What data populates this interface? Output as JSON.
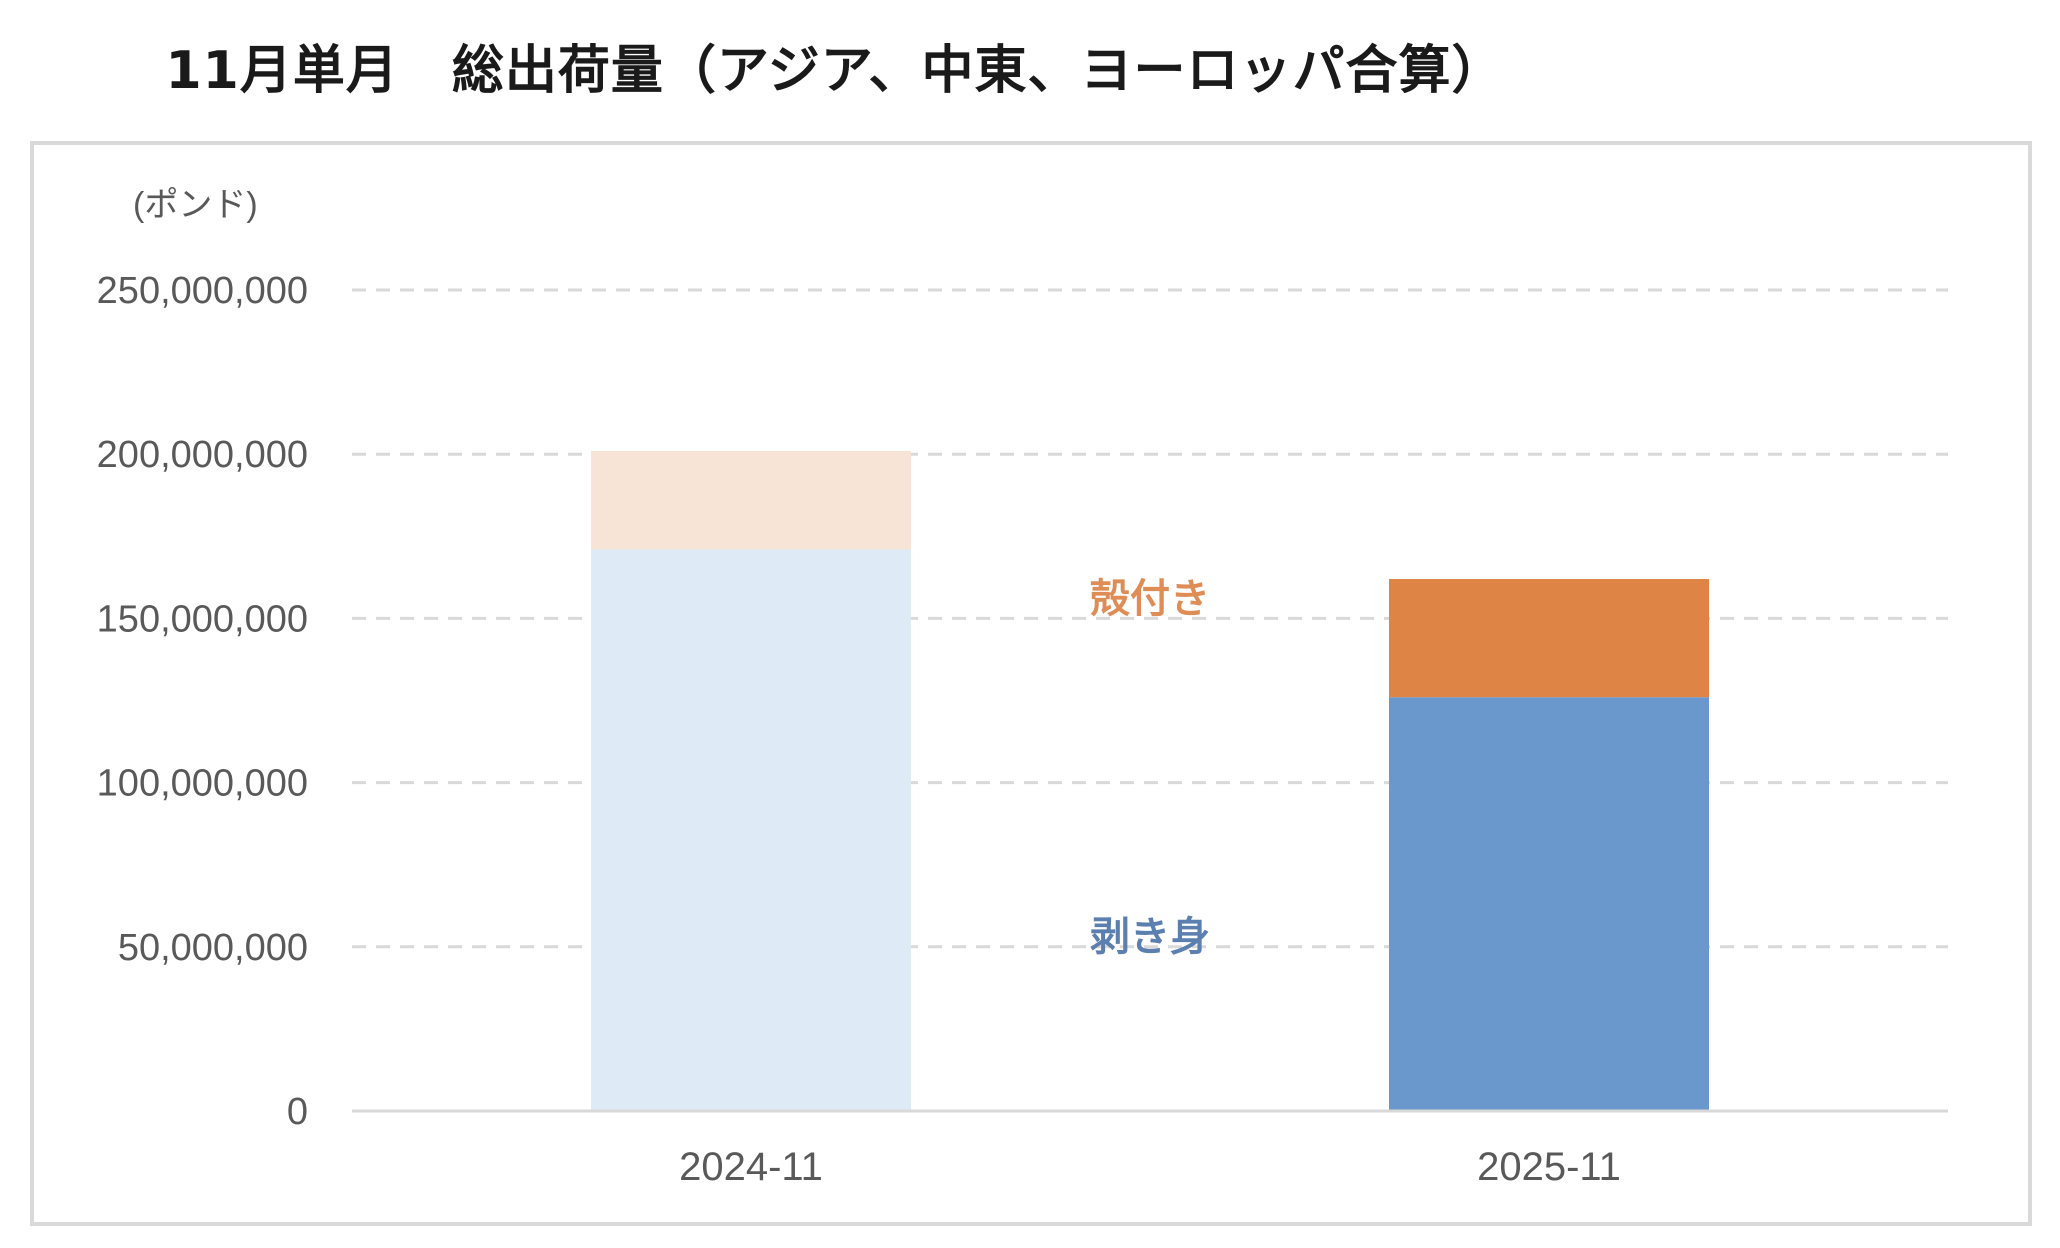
{
  "chart_data": {
    "type": "bar",
    "stacked": true,
    "title": "11月単月　総出荷量（アジア、中東、ヨーロッパ合算）",
    "unit_label": "(ポンド)",
    "categories": [
      "2024-11",
      "2025-11"
    ],
    "series": [
      {
        "name": "剥き身",
        "values": [
          171000000,
          126000000
        ],
        "colors": [
          "#DEEAF6",
          "#6A98CC"
        ]
      },
      {
        "name": "殻付き",
        "values": [
          30000000,
          36000000
        ],
        "colors": [
          "#F7E4D6",
          "#DE8445"
        ]
      }
    ],
    "ylim": [
      0,
      250000000
    ],
    "yticks": [
      0,
      50000000,
      100000000,
      150000000,
      200000000,
      250000000
    ],
    "ytick_labels": [
      "0",
      "50,000,000",
      "100,000,000",
      "150,000,000",
      "200,000,000",
      "250,000,000"
    ],
    "grid": true,
    "label_colors": {
      "剥き身": "#5B7FAF",
      "殻付き": "#DE8D57"
    }
  }
}
